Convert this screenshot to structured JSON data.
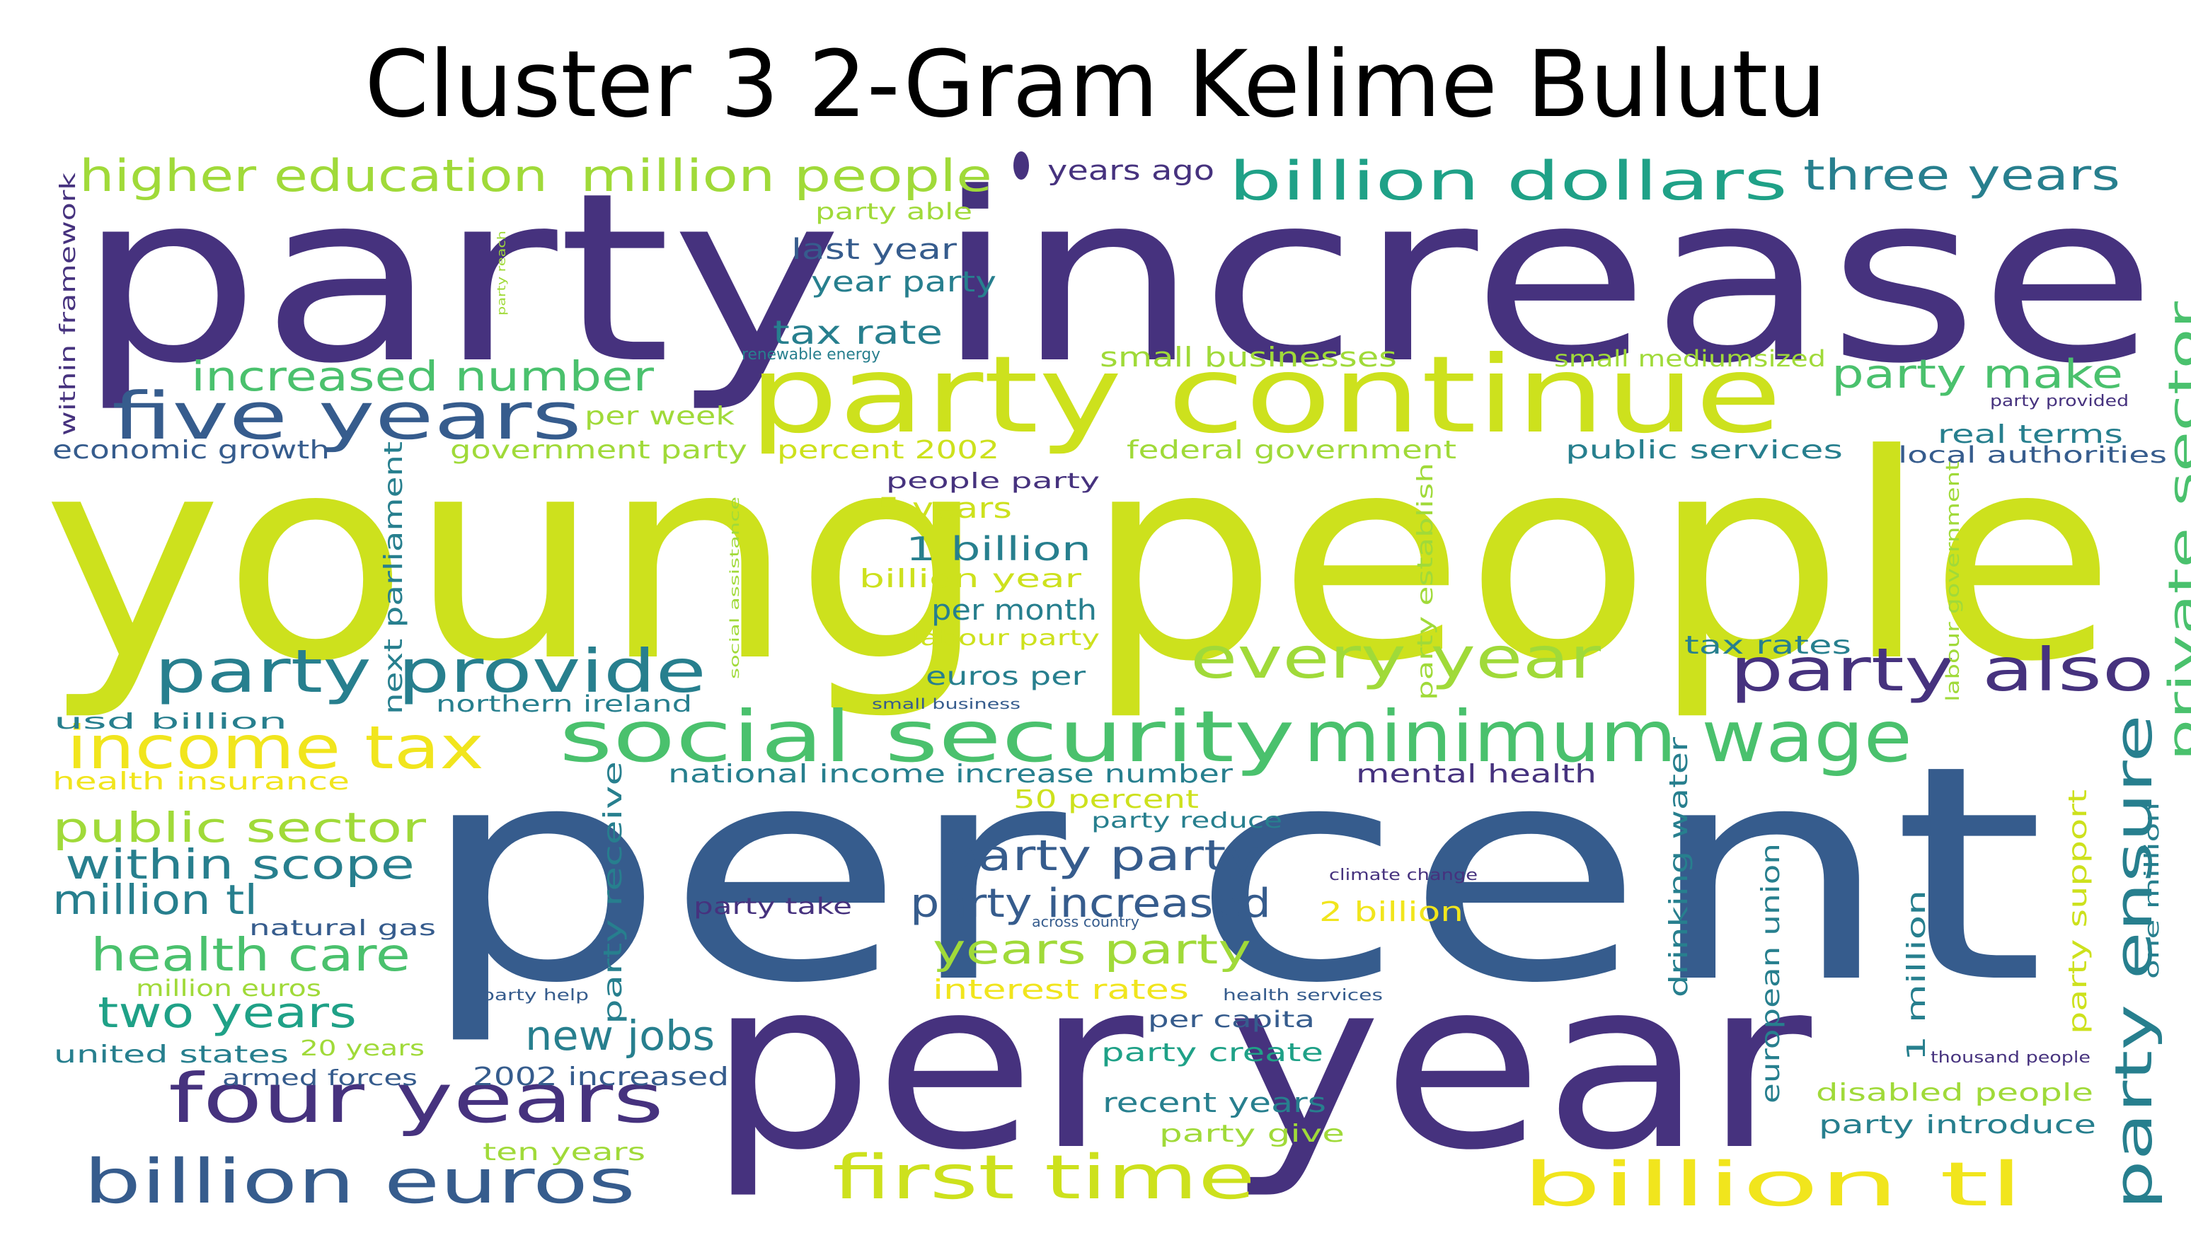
{
  "title": "Cluster 3 2-Gram Kelime Bulutu",
  "palette": [
    "#46327e",
    "#365c8d",
    "#277f8e",
    "#1fa187",
    "#4ac16d",
    "#a0da39",
    "#cde11d",
    "#f1e51d"
  ],
  "words": [
    {
      "text": "party increase",
      "color": "#46327e"
    },
    {
      "text": "young people",
      "color": "#cde11d"
    },
    {
      "text": "per cent",
      "color": "#365c8d"
    },
    {
      "text": "per year",
      "color": "#46327e"
    },
    {
      "text": "party continue",
      "color": "#cde11d"
    },
    {
      "text": "social security",
      "color": "#4ac16d"
    },
    {
      "text": "minimum wage",
      "color": "#4ac16d"
    },
    {
      "text": "party provide",
      "color": "#277f8e"
    },
    {
      "text": "income tax",
      "color": "#f1e51d"
    },
    {
      "text": "every year",
      "color": "#a0da39"
    },
    {
      "text": "party also",
      "color": "#46327e"
    },
    {
      "text": "party ensure",
      "color": "#277f8e"
    },
    {
      "text": "four years",
      "color": "#46327e"
    },
    {
      "text": "billion euros",
      "color": "#365c8d"
    },
    {
      "text": "first time",
      "color": "#cde11d"
    },
    {
      "text": "billion tl",
      "color": "#f1e51d"
    },
    {
      "text": "billion dollars",
      "color": "#1fa187"
    },
    {
      "text": "five years",
      "color": "#365c8d"
    },
    {
      "text": "higher education",
      "color": "#a0da39"
    },
    {
      "text": "million people",
      "color": "#a0da39"
    },
    {
      "text": "three years",
      "color": "#277f8e"
    },
    {
      "text": "increased number",
      "color": "#4ac16d"
    },
    {
      "text": "public sector",
      "color": "#a0da39"
    },
    {
      "text": "within scope",
      "color": "#277f8e"
    },
    {
      "text": "million tl",
      "color": "#277f8e"
    },
    {
      "text": "health care",
      "color": "#4ac16d"
    },
    {
      "text": "two years",
      "color": "#1fa187"
    },
    {
      "text": "party party",
      "color": "#365c8d"
    },
    {
      "text": "party increased",
      "color": "#365c8d"
    },
    {
      "text": "years party",
      "color": "#a0da39"
    },
    {
      "text": "new jobs",
      "color": "#277f8e"
    },
    {
      "text": "party make",
      "color": "#4ac16d"
    },
    {
      "text": "private sector",
      "color": "#4ac16d"
    },
    {
      "text": "tax rate",
      "color": "#277f8e"
    },
    {
      "text": "last year",
      "color": "#365c8d"
    },
    {
      "text": "year party",
      "color": "#277f8e"
    },
    {
      "text": "party able",
      "color": "#a0da39"
    },
    {
      "text": "years ago",
      "color": "#46327e"
    },
    {
      "text": "small businesses",
      "color": "#a0da39"
    },
    {
      "text": "small mediumsized",
      "color": "#a0da39"
    },
    {
      "text": "renewable energy",
      "color": "#277f8e"
    },
    {
      "text": "per week",
      "color": "#a0da39"
    },
    {
      "text": "economic growth",
      "color": "#365c8d"
    },
    {
      "text": "government party",
      "color": "#a0da39"
    },
    {
      "text": "percent 2002",
      "color": "#cde11d"
    },
    {
      "text": "federal government",
      "color": "#a0da39"
    },
    {
      "text": "public services",
      "color": "#277f8e"
    },
    {
      "text": "real terms",
      "color": "#277f8e"
    },
    {
      "text": "local authorities",
      "color": "#365c8d"
    },
    {
      "text": "party provided",
      "color": "#46327e"
    },
    {
      "text": "people party",
      "color": "#46327e"
    },
    {
      "text": "5 years",
      "color": "#cde11d"
    },
    {
      "text": "1 billion",
      "color": "#277f8e"
    },
    {
      "text": "billion year",
      "color": "#cde11d"
    },
    {
      "text": "per month",
      "color": "#277f8e"
    },
    {
      "text": "labour party",
      "color": "#cde11d"
    },
    {
      "text": "euros per",
      "color": "#277f8e"
    },
    {
      "text": "tax rates",
      "color": "#277f8e"
    },
    {
      "text": "small business",
      "color": "#365c8d"
    },
    {
      "text": "northern ireland",
      "color": "#277f8e"
    },
    {
      "text": "usd billion",
      "color": "#277f8e"
    },
    {
      "text": "health insurance",
      "color": "#f1e51d"
    },
    {
      "text": "national income",
      "color": "#277f8e"
    },
    {
      "text": "increase number",
      "color": "#277f8e"
    },
    {
      "text": "mental health",
      "color": "#46327e"
    },
    {
      "text": "50 percent",
      "color": "#cde11d"
    },
    {
      "text": "party reduce",
      "color": "#277f8e"
    },
    {
      "text": "climate change",
      "color": "#46327e"
    },
    {
      "text": "party take",
      "color": "#46327e"
    },
    {
      "text": "2 billion",
      "color": "#f1e51d"
    },
    {
      "text": "across country",
      "color": "#365c8d"
    },
    {
      "text": "natural gas",
      "color": "#365c8d"
    },
    {
      "text": "million euros",
      "color": "#a0da39"
    },
    {
      "text": "interest rates",
      "color": "#f1e51d"
    },
    {
      "text": "party help",
      "color": "#365c8d"
    },
    {
      "text": "health services",
      "color": "#365c8d"
    },
    {
      "text": "per capita",
      "color": "#365c8d"
    },
    {
      "text": "party create",
      "color": "#1fa187"
    },
    {
      "text": "united states",
      "color": "#277f8e"
    },
    {
      "text": "20 years",
      "color": "#a0da39"
    },
    {
      "text": "armed forces",
      "color": "#365c8d"
    },
    {
      "text": "2002 increased",
      "color": "#365c8d"
    },
    {
      "text": "recent years",
      "color": "#277f8e"
    },
    {
      "text": "party give",
      "color": "#a0da39"
    },
    {
      "text": "ten years",
      "color": "#a0da39"
    },
    {
      "text": "thousand people",
      "color": "#46327e"
    },
    {
      "text": "disabled people",
      "color": "#a0da39"
    },
    {
      "text": "party introduce",
      "color": "#277f8e"
    },
    {
      "text": "within framework",
      "color": "#46327e"
    },
    {
      "text": "party reach",
      "color": "#a0da39"
    },
    {
      "text": "next parliament",
      "color": "#277f8e"
    },
    {
      "text": "social assistance",
      "color": "#a0da39"
    },
    {
      "text": "party receive",
      "color": "#277f8e"
    },
    {
      "text": "party establish",
      "color": "#a0da39"
    },
    {
      "text": "drinking water",
      "color": "#277f8e"
    },
    {
      "text": "european union",
      "color": "#277f8e"
    },
    {
      "text": "labour government",
      "color": "#a0da39"
    },
    {
      "text": "1 million",
      "color": "#277f8e"
    },
    {
      "text": "party support",
      "color": "#cde11d"
    },
    {
      "text": "one million",
      "color": "#277f8e"
    }
  ]
}
